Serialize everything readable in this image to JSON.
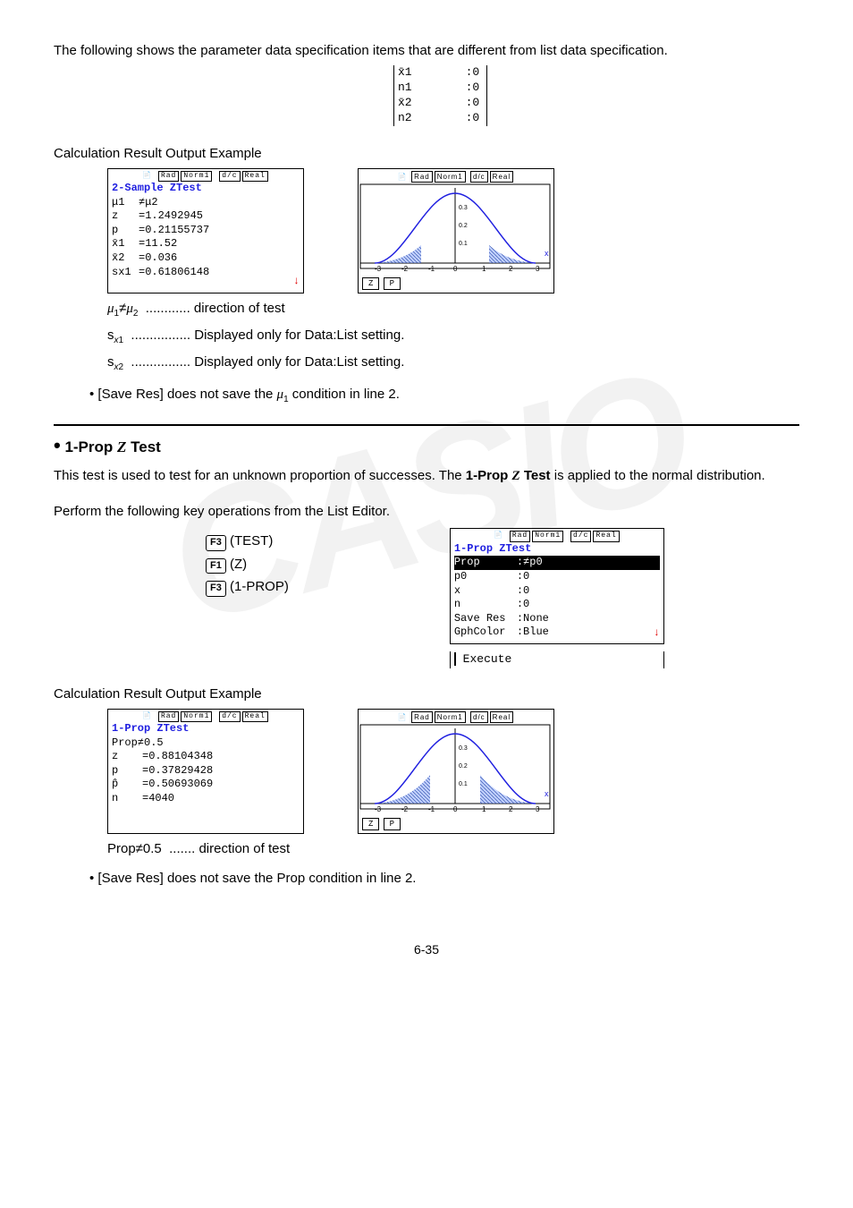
{
  "intro_text": "The following shows the parameter data specification items that are different from list data specification.",
  "param_table": {
    "labels": [
      "x̄1",
      "n1",
      "x̄2",
      "n2"
    ],
    "values": [
      ":0",
      ":0",
      ":0",
      ":0"
    ]
  },
  "calc_result_heading": "Calculation Result Output Example",
  "two_sample": {
    "title": "2-Sample ZTest",
    "rows": [
      [
        "μ1",
        "≠μ2"
      ],
      [
        "z",
        "=1.2492945"
      ],
      [
        "p",
        "=0.21155737"
      ],
      [
        "x̄1",
        "=11.52"
      ],
      [
        "x̄2",
        "=0.036"
      ],
      [
        "sx1",
        "=0.61806148"
      ]
    ]
  },
  "graph": {
    "xmin": -3,
    "xmax": 3,
    "ytick_labels": [
      "0.1",
      "0.2",
      "0.3"
    ],
    "curve_color": "#2020e0",
    "fill_color": "#80a0ff",
    "fill_opacity": 0.6,
    "labels": [
      "Z",
      "P"
    ]
  },
  "desc1": [
    {
      "sym": "μ1≠μ2",
      "dots": "............",
      "txt": "direction of test"
    },
    {
      "sym": "sx1",
      "dots": "................",
      "txt": "Displayed only for Data:List setting."
    },
    {
      "sym": "sx2",
      "dots": "................",
      "txt": "Displayed only for Data:List setting."
    }
  ],
  "bullet1": "[Save Res] does not save the μ1 condition in line 2.",
  "section_title": "1-Prop Z Test",
  "section_intro": "This test is used to test for an unknown proportion of successes. The ",
  "section_intro_bold": "1-Prop Z Test",
  "section_intro2": " is applied to the normal distribution.",
  "perform_text": "Perform the following key operations from the List Editor.",
  "key_ops": [
    {
      "key": "F3",
      "label": "(TEST)"
    },
    {
      "key": "F1",
      "label": "(Z)"
    },
    {
      "key": "F3",
      "label": "(1-PROP)"
    }
  ],
  "one_prop_input": {
    "title": "1-Prop ZTest",
    "rows": [
      [
        "Prop",
        ":≠p0",
        true
      ],
      [
        "p0",
        ":0",
        false
      ],
      [
        "x",
        ":0",
        false
      ],
      [
        "n",
        ":0",
        false
      ],
      [
        "Save Res",
        ":None",
        false
      ],
      [
        "GphColor",
        ":Blue",
        false
      ]
    ],
    "execute": "Execute"
  },
  "one_prop_result": {
    "title": "1-Prop ZTest",
    "rows": [
      [
        " Prop≠0.5",
        ""
      ],
      [
        " z",
        "=0.88104348"
      ],
      [
        " p",
        "=0.37829428"
      ],
      [
        " p̂",
        "=0.50693069"
      ],
      [
        " n",
        "=4040"
      ]
    ]
  },
  "desc2": [
    {
      "sym": "Prop≠0.5",
      "dots": ".......",
      "txt": "direction of test"
    }
  ],
  "bullet2": "[Save Res] does not save the Prop condition in line 2.",
  "page_number": "6-35",
  "status_header": {
    "items": [
      "Rad",
      "Norm1",
      "d/c",
      "Real"
    ]
  }
}
